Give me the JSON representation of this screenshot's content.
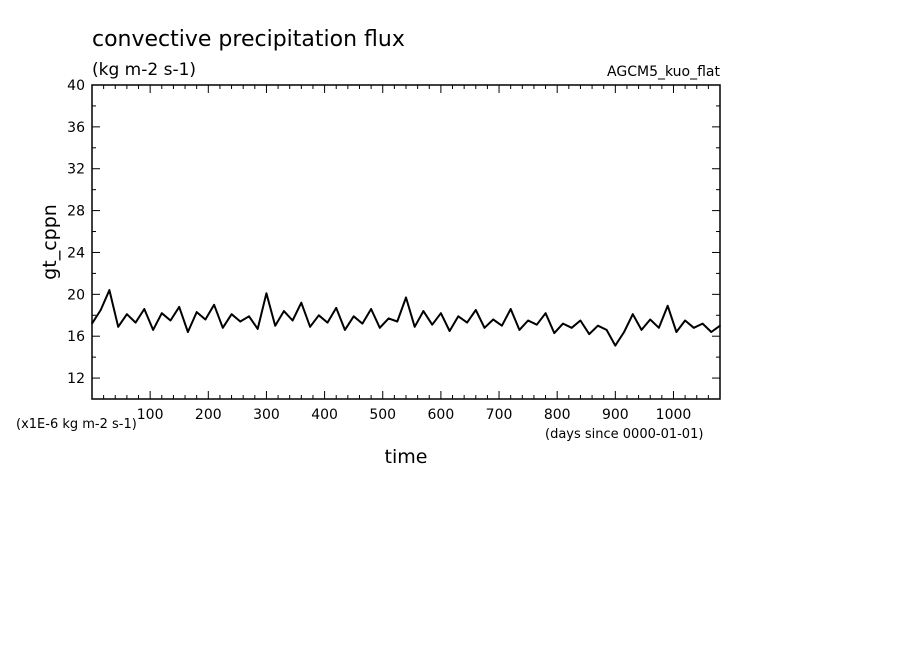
{
  "chart_data": {
    "type": "line",
    "title": "convective precipitation flux",
    "subtitle": "(kg m-2 s-1)",
    "run_label": "AGCM5_kuo_flat",
    "xlabel": "time",
    "ylabel": "gt_cppn",
    "x_unit": "(days since 0000-01-01)",
    "y_unit": "(x1E-6 kg m-2 s-1)",
    "xlim": [
      0,
      1080
    ],
    "ylim": [
      10,
      40
    ],
    "x_ticks": [
      100,
      200,
      300,
      400,
      500,
      600,
      700,
      800,
      900,
      1000
    ],
    "y_ticks": [
      12,
      16,
      20,
      24,
      28,
      32,
      36,
      40
    ],
    "grid": false,
    "series": [
      {
        "name": "gt_cppn",
        "x": [
          0,
          15,
          30,
          45,
          60,
          75,
          90,
          105,
          120,
          135,
          150,
          165,
          180,
          195,
          210,
          225,
          240,
          255,
          270,
          285,
          300,
          315,
          330,
          345,
          360,
          375,
          390,
          405,
          420,
          435,
          450,
          465,
          480,
          495,
          510,
          525,
          540,
          555,
          570,
          585,
          600,
          615,
          630,
          645,
          660,
          675,
          690,
          705,
          720,
          735,
          750,
          765,
          780,
          795,
          810,
          825,
          840,
          855,
          870,
          885,
          900,
          915,
          930,
          945,
          960,
          975,
          990,
          1005,
          1020,
          1035,
          1050,
          1065,
          1080
        ],
        "values": [
          17.2,
          18.5,
          20.4,
          16.9,
          18.1,
          17.3,
          18.6,
          16.6,
          18.2,
          17.5,
          18.8,
          16.4,
          18.3,
          17.6,
          19.0,
          16.8,
          18.1,
          17.4,
          17.9,
          16.7,
          20.1,
          17.0,
          18.4,
          17.5,
          19.2,
          16.9,
          18.0,
          17.3,
          18.7,
          16.6,
          17.9,
          17.2,
          18.6,
          16.8,
          17.7,
          17.4,
          19.7,
          16.9,
          18.4,
          17.1,
          18.2,
          16.5,
          17.9,
          17.3,
          18.5,
          16.8,
          17.6,
          17.0,
          18.6,
          16.6,
          17.5,
          17.1,
          18.2,
          16.3,
          17.2,
          16.8,
          17.5,
          16.2,
          17.0,
          16.6,
          15.1,
          16.4,
          18.1,
          16.6,
          17.6,
          16.8,
          18.9,
          16.4,
          17.5,
          16.8,
          17.2,
          16.4,
          17.0
        ]
      }
    ]
  }
}
